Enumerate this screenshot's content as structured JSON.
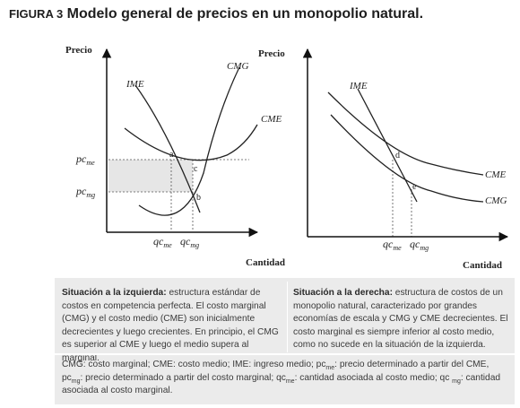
{
  "figure": {
    "label": "FIGURA 3",
    "title": "Modelo general de precios en un monopolio natural."
  },
  "left_graph": {
    "y_axis_label": "Precio",
    "x_axis_label": "Cantidad",
    "curves": {
      "ime": "IME",
      "cmg": "CMG",
      "cme": "CME"
    },
    "points": {
      "a": "a",
      "b": "b",
      "c": "c"
    },
    "y_ticks": {
      "pcme_base": "pc",
      "pcme_sub": "me",
      "pcmg_base": "pc",
      "pcmg_sub": "mg"
    },
    "x_ticks": {
      "qcme_base": "qc",
      "qcme_sub": "me",
      "qcmg_base": "qc",
      "qcmg_sub": "mg"
    }
  },
  "right_graph": {
    "y_axis_label": "Precio",
    "x_axis_label": "Cantidad",
    "curves": {
      "ime": "IME",
      "cme": "CME",
      "cmg": "CMG"
    },
    "points": {
      "d": "d",
      "e": "e"
    },
    "x_ticks": {
      "qcme_base": "qc",
      "qcme_sub": "me",
      "qcmg_base": "qc",
      "qcmg_sub": "mg"
    }
  },
  "description_left": {
    "heading": "Situación a la izquierda:",
    "text": " estructura estándar de costos en competencia perfecta. El costo marginal (CMG) y el costo medio (CME) son inicialmente decrecientes y luego crecientes. En principio, el CMG es superior al CME y luego el medio supera al marginal."
  },
  "description_right": {
    "heading": "Situación a la derecha:",
    "text": " estructura de costos de un monopolio natural, caracterizado por grandes economías de escala y CMG y CME decrecientes. El costo marginal es siempre inferior al costo medio, como no sucede en la situación de la izquierda."
  },
  "footnote": {
    "p1": "CMG: costo marginal; CME: costo medio; IME: ingreso medio; pc",
    "s1": "me",
    "p2": ": precio determinado a partir del CME, pc",
    "s2": "mg",
    "p3": ": precio determinado a partir del costo marginal; qc",
    "s3": "me",
    "p4": ": cantidad asociada al costo medio; qc ",
    "s4": "mg",
    "p5": ": cantidad asociada al costo marginal."
  }
}
